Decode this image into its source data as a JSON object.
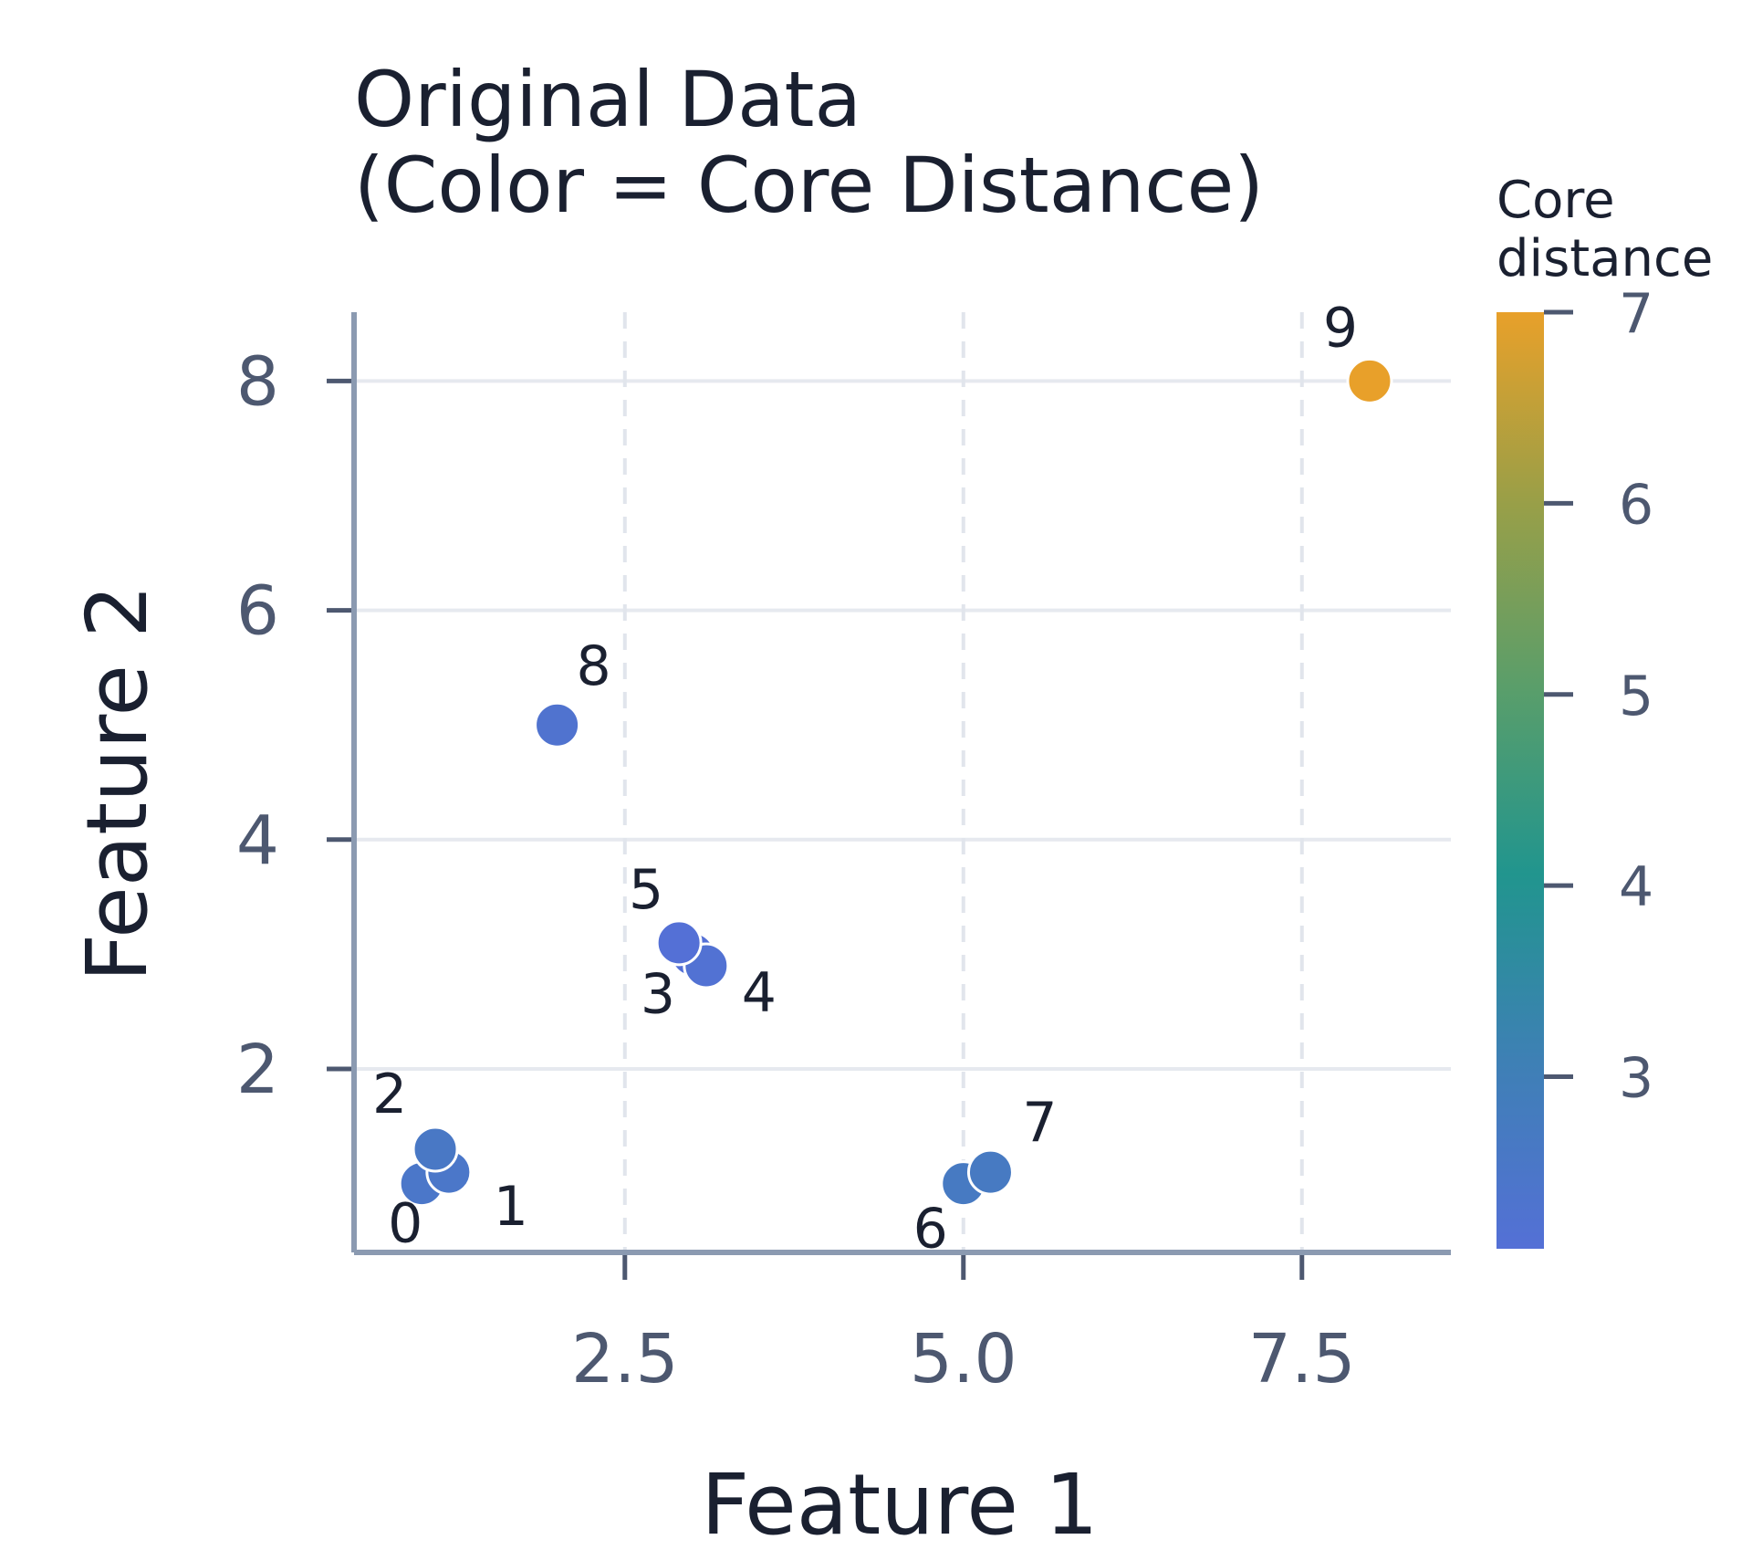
{
  "chart_data": {
    "type": "scatter",
    "title": [
      "Original Data",
      "(Color = Core Distance)"
    ],
    "xlabel": "Feature 1",
    "ylabel": "Feature 2",
    "xlim": [
      0.5,
      8.6
    ],
    "ylim": [
      0.4,
      8.6
    ],
    "xticks": [
      2.5,
      5.0,
      7.5
    ],
    "xtick_labels": [
      "2.5",
      "5.0",
      "7.5"
    ],
    "yticks": [
      2,
      4,
      6,
      8
    ],
    "ytick_labels": [
      "2",
      "4",
      "6",
      "8"
    ],
    "grid": true,
    "points": [
      {
        "label": "0",
        "x": 1.0,
        "y": 1.0,
        "core_distance": 2.5
      },
      {
        "label": "1",
        "x": 1.2,
        "y": 1.1,
        "core_distance": 2.5
      },
      {
        "label": "2",
        "x": 1.1,
        "y": 1.3,
        "core_distance": 2.6
      },
      {
        "label": "3",
        "x": 3.0,
        "y": 3.0,
        "core_distance": 2.1
      },
      {
        "label": "4",
        "x": 3.1,
        "y": 2.9,
        "core_distance": 2.2
      },
      {
        "label": "5",
        "x": 2.9,
        "y": 3.1,
        "core_distance": 2.1
      },
      {
        "label": "6",
        "x": 5.0,
        "y": 1.0,
        "core_distance": 2.7
      },
      {
        "label": "7",
        "x": 5.2,
        "y": 1.1,
        "core_distance": 2.7
      },
      {
        "label": "8",
        "x": 2.0,
        "y": 5.0,
        "core_distance": 2.3
      },
      {
        "label": "9",
        "x": 8.0,
        "y": 8.0,
        "core_distance": 7.0
      }
    ],
    "colorbar": {
      "title": [
        "Core",
        "distance"
      ],
      "range": [
        2.1,
        7.0
      ],
      "ticks": [
        3,
        4,
        5,
        6,
        7
      ],
      "tick_labels": [
        "3",
        "4",
        "5",
        "6",
        "7"
      ],
      "colors": [
        "#5470d6",
        "#3e80b5",
        "#21958e",
        "#5a9e6a",
        "#9a9f47",
        "#e8a02a"
      ],
      "placement": "right"
    }
  }
}
